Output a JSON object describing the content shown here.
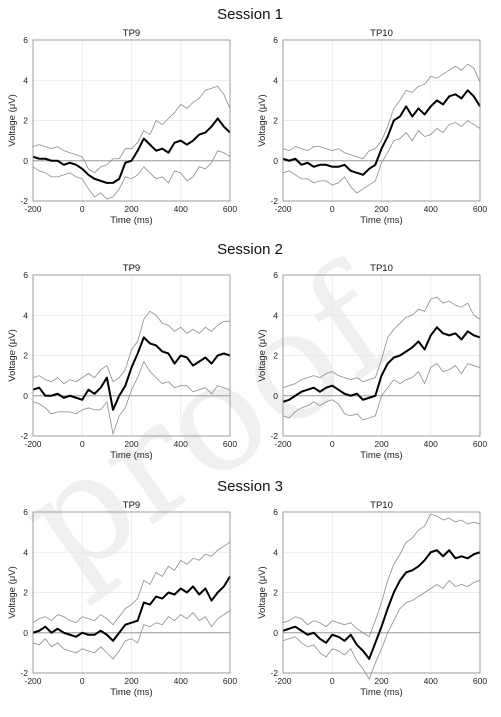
{
  "watermark": "proof",
  "sessions": [
    {
      "title": "Session 1"
    },
    {
      "title": "Session 2"
    },
    {
      "title": "Session 3"
    }
  ],
  "chart_data": [
    {
      "type": "line",
      "session": "Session 1",
      "title": "TP9",
      "xlabel": "Time (ms)",
      "ylabel": "Voltage (μV)",
      "xlim": [
        -200,
        600
      ],
      "ylim": [
        -2,
        6
      ],
      "xticks": [
        -200,
        0,
        200,
        400,
        600
      ],
      "yticks": [
        -2,
        0,
        2,
        4,
        6
      ],
      "grid": true,
      "x": [
        -200,
        -175,
        -150,
        -125,
        -100,
        -75,
        -50,
        -25,
        0,
        25,
        50,
        75,
        100,
        125,
        150,
        175,
        200,
        225,
        250,
        275,
        300,
        325,
        350,
        375,
        400,
        425,
        450,
        475,
        500,
        525,
        550,
        575,
        600
      ],
      "series": [
        {
          "role": "upper",
          "values": [
            0.7,
            0.8,
            0.7,
            0.6,
            0.7,
            0.5,
            0.4,
            0.3,
            0.2,
            -0.4,
            -0.6,
            -0.3,
            -0.2,
            0.1,
            0.1,
            0.6,
            0.6,
            0.9,
            1.5,
            1.3,
            2.0,
            1.8,
            2.1,
            2.4,
            2.8,
            2.6,
            2.9,
            3.1,
            3.5,
            3.6,
            3.7,
            3.3,
            2.6
          ]
        },
        {
          "role": "mean",
          "values": [
            0.2,
            0.1,
            0.1,
            0.0,
            0.0,
            -0.2,
            -0.1,
            -0.2,
            -0.4,
            -0.7,
            -0.9,
            -1.0,
            -1.1,
            -1.1,
            -0.9,
            -0.1,
            0.0,
            0.5,
            1.1,
            0.8,
            0.5,
            0.6,
            0.4,
            0.9,
            1.0,
            0.8,
            1.0,
            1.3,
            1.4,
            1.7,
            2.1,
            1.7,
            1.4
          ]
        },
        {
          "role": "lower",
          "values": [
            -0.3,
            -0.5,
            -0.6,
            -0.8,
            -0.8,
            -0.7,
            -0.6,
            -0.8,
            -0.9,
            -1.4,
            -1.8,
            -1.6,
            -1.9,
            -1.8,
            -1.4,
            -0.8,
            -0.9,
            -0.7,
            -0.3,
            -0.6,
            -0.9,
            -0.8,
            -1.1,
            -0.5,
            -0.6,
            -1.0,
            -0.8,
            -0.3,
            -0.4,
            -0.1,
            0.5,
            0.4,
            0.2
          ]
        }
      ]
    },
    {
      "type": "line",
      "session": "Session 1",
      "title": "TP10",
      "xlabel": "Time (ms)",
      "ylabel": "Voltage (μV)",
      "xlim": [
        -200,
        600
      ],
      "ylim": [
        -2,
        6
      ],
      "xticks": [
        -200,
        0,
        200,
        400,
        600
      ],
      "yticks": [
        -2,
        0,
        2,
        4,
        6
      ],
      "grid": true,
      "x": [
        -200,
        -175,
        -150,
        -125,
        -100,
        -75,
        -50,
        -25,
        0,
        25,
        50,
        75,
        100,
        125,
        150,
        175,
        200,
        225,
        250,
        275,
        300,
        325,
        350,
        375,
        400,
        425,
        450,
        475,
        500,
        525,
        550,
        575,
        600
      ],
      "series": [
        {
          "role": "upper",
          "values": [
            0.6,
            0.5,
            0.7,
            0.6,
            0.5,
            0.7,
            0.7,
            0.6,
            0.5,
            0.6,
            0.4,
            0.3,
            0.2,
            0.1,
            0.5,
            0.6,
            1.0,
            1.7,
            2.6,
            3.0,
            3.5,
            3.4,
            3.7,
            3.8,
            4.2,
            4.1,
            4.3,
            4.5,
            4.7,
            4.5,
            4.8,
            4.6,
            3.9
          ]
        },
        {
          "role": "mean",
          "values": [
            0.1,
            0.0,
            0.1,
            -0.2,
            -0.1,
            -0.3,
            -0.2,
            -0.2,
            -0.3,
            -0.3,
            -0.2,
            -0.5,
            -0.6,
            -0.7,
            -0.4,
            -0.2,
            0.6,
            1.2,
            2.0,
            2.2,
            2.7,
            2.2,
            2.6,
            2.3,
            2.7,
            3.0,
            2.8,
            3.2,
            3.3,
            3.1,
            3.5,
            3.2,
            2.7
          ]
        },
        {
          "role": "lower",
          "values": [
            -0.6,
            -0.5,
            -0.7,
            -0.9,
            -0.9,
            -1.1,
            -1.0,
            -1.0,
            -1.2,
            -1.1,
            -0.8,
            -1.3,
            -1.6,
            -1.4,
            -1.2,
            -1.0,
            -0.1,
            0.4,
            1.0,
            1.1,
            1.4,
            1.0,
            1.5,
            1.2,
            1.3,
            1.6,
            1.4,
            1.8,
            1.9,
            1.7,
            2.0,
            1.8,
            1.6
          ]
        }
      ]
    },
    {
      "type": "line",
      "session": "Session 2",
      "title": "TP9",
      "xlabel": "Time (ms)",
      "ylabel": "Voltage (μV)",
      "xlim": [
        -200,
        600
      ],
      "ylim": [
        -2,
        6
      ],
      "xticks": [
        -200,
        0,
        200,
        400,
        600
      ],
      "yticks": [
        -2,
        0,
        2,
        4,
        6
      ],
      "grid": true,
      "x": [
        -200,
        -175,
        -150,
        -125,
        -100,
        -75,
        -50,
        -25,
        0,
        25,
        50,
        75,
        100,
        125,
        150,
        175,
        200,
        225,
        250,
        275,
        300,
        325,
        350,
        375,
        400,
        425,
        450,
        475,
        500,
        525,
        550,
        575,
        600
      ],
      "series": [
        {
          "role": "upper",
          "values": [
            0.9,
            1.0,
            0.8,
            0.7,
            0.9,
            0.6,
            0.8,
            0.7,
            0.9,
            1.1,
            0.9,
            1.3,
            1.5,
            0.7,
            0.9,
            1.3,
            2.3,
            2.7,
            3.8,
            4.2,
            4.0,
            3.6,
            3.5,
            3.2,
            3.4,
            3.1,
            3.3,
            3.1,
            3.4,
            3.2,
            3.5,
            3.7,
            3.7
          ]
        },
        {
          "role": "mean",
          "values": [
            0.3,
            0.4,
            0.0,
            0.0,
            0.1,
            -0.1,
            0.0,
            -0.1,
            -0.2,
            0.3,
            0.1,
            0.4,
            0.9,
            -0.7,
            0.0,
            0.5,
            1.4,
            2.1,
            2.9,
            2.6,
            2.5,
            2.2,
            2.1,
            1.6,
            2.0,
            1.9,
            1.5,
            1.7,
            1.9,
            1.6,
            2.0,
            2.1,
            2.0
          ]
        },
        {
          "role": "lower",
          "values": [
            -0.3,
            -0.4,
            -0.6,
            -0.9,
            -0.8,
            -0.8,
            -0.8,
            -0.9,
            -0.7,
            -0.6,
            -0.7,
            -0.7,
            -0.3,
            -1.9,
            -1.0,
            -0.6,
            0.3,
            0.9,
            1.7,
            1.2,
            0.9,
            0.6,
            0.7,
            0.4,
            0.5,
            0.5,
            0.2,
            0.3,
            0.4,
            0.1,
            0.5,
            0.4,
            0.3
          ]
        }
      ]
    },
    {
      "type": "line",
      "session": "Session 2",
      "title": "TP10",
      "xlabel": "Time (ms)",
      "ylabel": "Voltage (μV)",
      "xlim": [
        -200,
        600
      ],
      "ylim": [
        -2,
        6
      ],
      "xticks": [
        -200,
        0,
        200,
        400,
        600
      ],
      "yticks": [
        -2,
        0,
        2,
        4,
        6
      ],
      "grid": true,
      "x": [
        -200,
        -175,
        -150,
        -125,
        -100,
        -75,
        -50,
        -25,
        0,
        25,
        50,
        75,
        100,
        125,
        150,
        175,
        200,
        225,
        250,
        275,
        300,
        325,
        350,
        375,
        400,
        425,
        450,
        475,
        500,
        525,
        550,
        575,
        600
      ],
      "series": [
        {
          "role": "upper",
          "values": [
            0.4,
            0.5,
            0.6,
            0.8,
            0.9,
            1.0,
            0.9,
            1.1,
            1.2,
            1.0,
            0.9,
            0.8,
            0.9,
            0.7,
            0.8,
            0.9,
            1.8,
            2.9,
            3.3,
            3.6,
            3.9,
            4.0,
            4.3,
            4.2,
            4.8,
            4.9,
            4.6,
            4.7,
            4.5,
            4.4,
            4.6,
            4.0,
            3.8
          ]
        },
        {
          "role": "mean",
          "values": [
            -0.3,
            -0.2,
            0.0,
            0.2,
            0.3,
            0.4,
            0.2,
            0.4,
            0.5,
            0.3,
            0.1,
            0.0,
            0.1,
            -0.2,
            -0.1,
            0.0,
            1.0,
            1.6,
            1.9,
            2.0,
            2.2,
            2.4,
            2.7,
            2.3,
            3.0,
            3.4,
            3.1,
            3.0,
            3.1,
            2.8,
            3.2,
            3.0,
            2.9
          ]
        },
        {
          "role": "lower",
          "values": [
            -1.0,
            -1.1,
            -0.8,
            -0.6,
            -0.5,
            -0.3,
            -0.5,
            -0.3,
            -0.2,
            -0.4,
            -0.9,
            -1.0,
            -0.9,
            -1.2,
            -1.1,
            -1.0,
            0.0,
            0.4,
            0.8,
            0.6,
            0.8,
            0.9,
            1.2,
            0.6,
            1.4,
            1.6,
            1.2,
            1.3,
            1.5,
            1.1,
            1.6,
            1.5,
            1.4
          ]
        }
      ]
    },
    {
      "type": "line",
      "session": "Session 3",
      "title": "TP9",
      "xlabel": "Time (ms)",
      "ylabel": "Voltage (μV)",
      "xlim": [
        -200,
        600
      ],
      "ylim": [
        -2,
        6
      ],
      "xticks": [
        -200,
        0,
        200,
        400,
        600
      ],
      "yticks": [
        -2,
        0,
        2,
        4,
        6
      ],
      "grid": true,
      "x": [
        -200,
        -175,
        -150,
        -125,
        -100,
        -75,
        -50,
        -25,
        0,
        25,
        50,
        75,
        100,
        125,
        150,
        175,
        200,
        225,
        250,
        275,
        300,
        325,
        350,
        375,
        400,
        425,
        450,
        475,
        500,
        525,
        550,
        575,
        600
      ],
      "series": [
        {
          "role": "upper",
          "values": [
            0.5,
            0.7,
            0.8,
            0.6,
            0.9,
            0.8,
            0.6,
            0.5,
            0.8,
            0.7,
            0.6,
            0.9,
            0.7,
            0.4,
            0.8,
            1.2,
            1.4,
            1.7,
            2.6,
            2.4,
            3.0,
            2.8,
            3.3,
            3.1,
            3.6,
            3.4,
            3.7,
            3.6,
            3.9,
            3.8,
            4.1,
            4.3,
            4.5
          ]
        },
        {
          "role": "mean",
          "values": [
            0.0,
            0.1,
            0.3,
            0.0,
            0.2,
            0.0,
            -0.1,
            -0.2,
            0.0,
            -0.1,
            -0.1,
            0.1,
            -0.1,
            -0.4,
            0.0,
            0.4,
            0.5,
            0.6,
            1.5,
            1.4,
            1.8,
            1.7,
            2.0,
            1.9,
            2.2,
            2.0,
            2.3,
            1.9,
            2.2,
            1.6,
            2.0,
            2.3,
            2.8
          ]
        },
        {
          "role": "lower",
          "values": [
            -0.5,
            -0.6,
            -0.3,
            -0.7,
            -0.5,
            -0.8,
            -0.9,
            -1.0,
            -0.8,
            -0.9,
            -1.0,
            -0.7,
            -1.0,
            -1.3,
            -0.9,
            -0.4,
            -0.3,
            -0.5,
            0.4,
            0.3,
            0.5,
            0.4,
            0.8,
            0.6,
            0.9,
            0.7,
            1.0,
            0.6,
            0.8,
            0.3,
            0.7,
            0.9,
            1.1
          ]
        }
      ]
    },
    {
      "type": "line",
      "session": "Session 3",
      "title": "TP10",
      "xlabel": "Time (ms)",
      "ylabel": "Voltage (μV)",
      "xlim": [
        -200,
        600
      ],
      "ylim": [
        -2,
        6
      ],
      "xticks": [
        -200,
        0,
        200,
        400,
        600
      ],
      "yticks": [
        -2,
        0,
        2,
        4,
        6
      ],
      "grid": true,
      "x": [
        -200,
        -175,
        -150,
        -125,
        -100,
        -75,
        -50,
        -25,
        0,
        25,
        50,
        75,
        100,
        125,
        150,
        175,
        200,
        225,
        250,
        275,
        300,
        325,
        350,
        375,
        400,
        425,
        450,
        475,
        500,
        525,
        550,
        575,
        600
      ],
      "series": [
        {
          "role": "upper",
          "values": [
            0.5,
            0.6,
            0.8,
            0.7,
            0.4,
            0.6,
            0.5,
            0.3,
            0.6,
            0.5,
            0.4,
            0.5,
            0.2,
            0.0,
            -0.2,
            0.6,
            1.5,
            2.6,
            3.4,
            3.9,
            4.5,
            4.7,
            5.1,
            5.3,
            5.9,
            5.8,
            5.6,
            5.7,
            5.5,
            5.6,
            5.4,
            5.5,
            5.4
          ]
        },
        {
          "role": "mean",
          "values": [
            0.1,
            0.2,
            0.3,
            0.1,
            -0.1,
            0.0,
            -0.3,
            -0.5,
            -0.1,
            -0.2,
            -0.4,
            -0.1,
            -0.6,
            -0.9,
            -1.3,
            -0.5,
            0.3,
            1.2,
            2.0,
            2.6,
            3.0,
            3.1,
            3.3,
            3.6,
            4.0,
            4.1,
            3.8,
            4.1,
            3.7,
            3.8,
            3.7,
            3.9,
            4.0
          ]
        },
        {
          "role": "lower",
          "values": [
            -0.4,
            -0.3,
            -0.2,
            -0.5,
            -0.7,
            -0.6,
            -1.0,
            -1.2,
            -0.8,
            -0.9,
            -1.1,
            -0.8,
            -1.4,
            -1.8,
            -2.3,
            -1.5,
            -0.8,
            0.0,
            0.6,
            1.2,
            1.5,
            1.6,
            1.8,
            2.0,
            2.2,
            2.4,
            2.2,
            2.6,
            2.3,
            2.4,
            2.3,
            2.5,
            2.6
          ]
        }
      ]
    }
  ]
}
